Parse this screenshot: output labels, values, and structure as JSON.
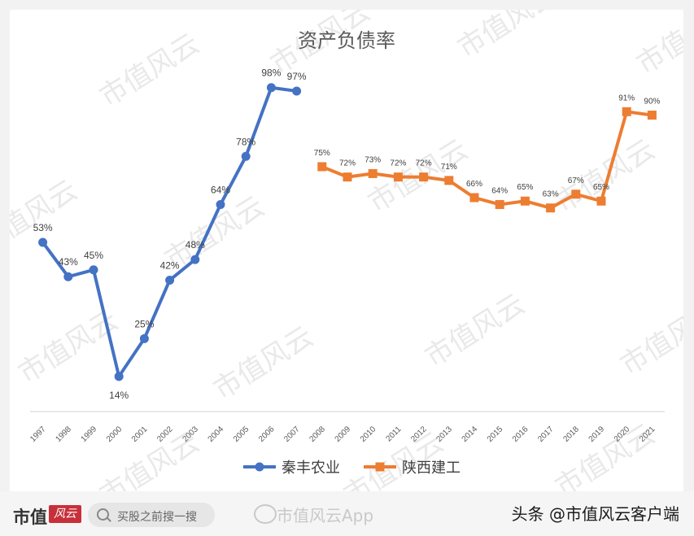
{
  "chart_data": {
    "type": "line",
    "title": "资产负债率",
    "categories": [
      "1997",
      "1998",
      "1999",
      "2000",
      "2001",
      "2002",
      "2003",
      "2004",
      "2005",
      "2006",
      "2007",
      "2008",
      "2009",
      "2010",
      "2011",
      "2012",
      "2013",
      "2014",
      "2015",
      "2016",
      "2017",
      "2018",
      "2019",
      "2020",
      "2021"
    ],
    "ylim": [
      0,
      110
    ],
    "grid": false,
    "legend_position": "bottom",
    "series": [
      {
        "name": "秦丰农业",
        "color": "#4472c4",
        "marker": "circle",
        "x": [
          "1997",
          "1998",
          "1999",
          "2000",
          "2001",
          "2002",
          "2003",
          "2004",
          "2005",
          "2006",
          "2007"
        ],
        "values": [
          53,
          43,
          45,
          14,
          25,
          42,
          48,
          64,
          78,
          98,
          97
        ],
        "labels": [
          "53%",
          "43%",
          "45%",
          "14%",
          "25%",
          "42%",
          "48%",
          "64%",
          "78%",
          "98%",
          "97%"
        ]
      },
      {
        "name": "陕西建工",
        "color": "#ed7d31",
        "marker": "square",
        "x": [
          "2008",
          "2009",
          "2010",
          "2011",
          "2012",
          "2013",
          "2014",
          "2015",
          "2016",
          "2017",
          "2018",
          "2019",
          "2020",
          "2021"
        ],
        "values": [
          75,
          72,
          73,
          72,
          72,
          71,
          66,
          64,
          65,
          63,
          67,
          65,
          91,
          90
        ],
        "labels": [
          "75%",
          "72%",
          "73%",
          "72%",
          "72%",
          "71%",
          "66%",
          "64%",
          "65%",
          "63%",
          "67%",
          "65%",
          "91%",
          "90%"
        ]
      }
    ]
  },
  "watermark": "市值风云",
  "footer": {
    "brand": "市值",
    "brand_script": "风云",
    "search_placeholder": "买股之前搜一搜",
    "weibo_text": "市值风云App",
    "credit": "头条 @市值风云客户端"
  }
}
